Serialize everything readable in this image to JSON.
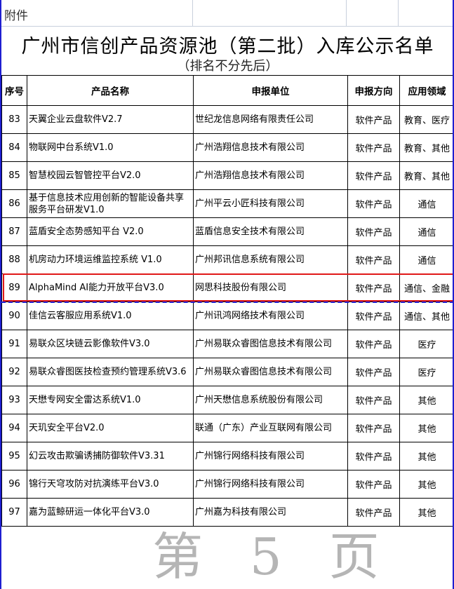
{
  "attachment_label": "附件",
  "title": "广州市信创产品资源池（第二批）入库公示名单",
  "subtitle": "（排名不分先后）",
  "headers": [
    "序号",
    "产品名称",
    "申报单位",
    "申报方向",
    "应用领域"
  ],
  "rows": [
    [
      "83",
      "天翼企业云盘软件V2.7",
      "世纪龙信息网络有限责任公司",
      "软件产品",
      "教育、医疗"
    ],
    [
      "84",
      "物联网中台系统V1.0",
      "广州浩翔信息技术有限公司",
      "软件产品",
      "教育、其他"
    ],
    [
      "85",
      "智慧校园云智管控平台V2.0",
      "广州浩翔信息技术有限公司",
      "软件产品",
      "教育、其他"
    ],
    [
      "86",
      "基于信息技术应用创新的智能设备共享服务平台研发V1.0",
      "广州平云小匠科技有限公司",
      "软件产品",
      "通信"
    ],
    [
      "87",
      "蓝盾安全态势感知平台 V2.0",
      "蓝盾信息安全技术有限公司",
      "软件产品",
      "通信"
    ],
    [
      "88",
      "机房动力环境运维监控系统 V1.0",
      "广州邦讯信息系统有限公司",
      "软件产品",
      "通信"
    ],
    [
      "89",
      "AlphaMind AI能力开放平台V3.0",
      "网思科技股份有限公司",
      "软件产品",
      "通信、金融"
    ],
    [
      "90",
      "佳信云客服应用系统V1.0",
      "广州讯鸿网络技术有限公司",
      "软件产品",
      "通信、其他"
    ],
    [
      "91",
      "易联众区块链云影像软件V3.0",
      "广州易联众睿图信息技术有限公司",
      "软件产品",
      "医疗"
    ],
    [
      "92",
      "易联众睿图医技检查预约管理系统V3.6",
      "广州易联众睿图信息技术有限公司",
      "软件产品",
      "医疗"
    ],
    [
      "93",
      "天懋专网安全雷达系统V1.0",
      "广州天懋信息系统股份有限公司",
      "软件产品",
      "其他"
    ],
    [
      "94",
      "天玑安全平台V2.0",
      "联通（广东）产业互联网有限公司",
      "软件产品",
      "其他"
    ],
    [
      "95",
      "幻云攻击欺骗诱捕防御软件V3.31",
      "广州锦行网络科技有限公司",
      "软件产品",
      "其他"
    ],
    [
      "96",
      "锦行天穹攻防对抗演练平台V3.0",
      "广州锦行网络科技有限公司",
      "软件产品",
      "其他"
    ],
    [
      "97",
      "嘉为蓝鲸研运一体化平台V3.0",
      "广州嘉为科技有限公司",
      "软件产品",
      "其他"
    ]
  ],
  "highlighted_row": "89",
  "watermark": "第 5 页",
  "colors": {
    "highlight": "#e01818",
    "border_blue": "#1f1fd0"
  }
}
